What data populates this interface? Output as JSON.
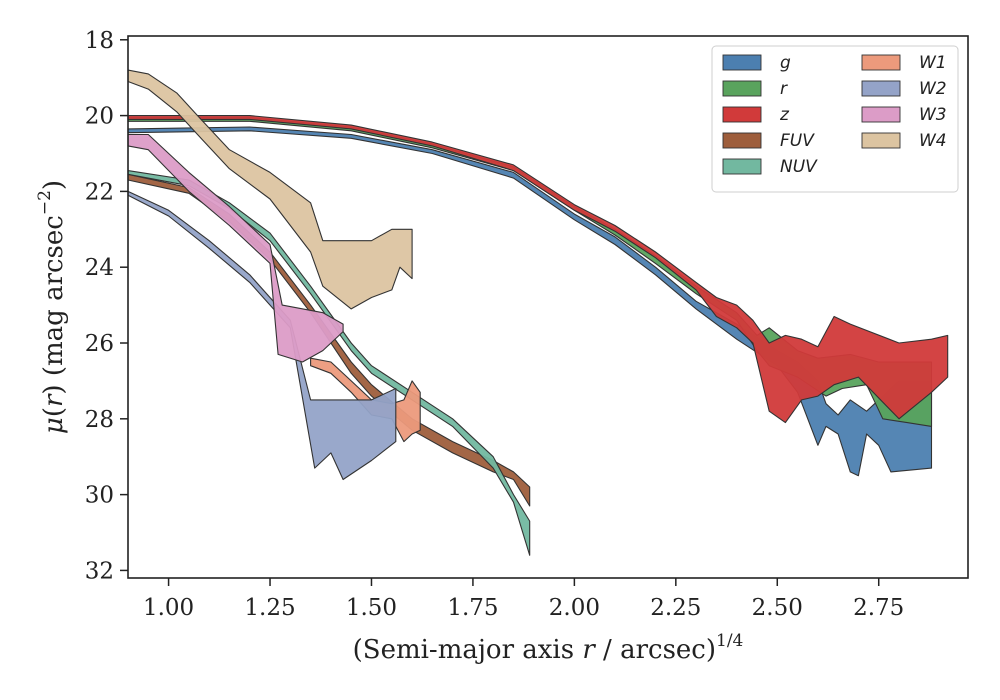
{
  "chart_data": {
    "type": "area",
    "xlabel": "(Semi-major axis r / arcsec)^{1/4}",
    "xlabel_parts": {
      "pre": "(Semi-major axis ",
      "var": "r",
      "post": " / arcsec)",
      "sup": "1/4"
    },
    "ylabel": "μ(r) (mag arcsec^-2)",
    "ylabel_parts": {
      "mu": "μ",
      "open": "(",
      "var": "r",
      "close": ")",
      "unit": " (mag arcsec",
      "sup": "−2",
      "end": ")"
    },
    "xlim": [
      0.9,
      2.97
    ],
    "ylim": [
      32.2,
      17.9
    ],
    "y_inverted": true,
    "xticks": [
      1.0,
      1.25,
      1.5,
      1.75,
      2.0,
      2.25,
      2.5,
      2.75
    ],
    "xtick_labels": [
      "1.00",
      "1.25",
      "1.50",
      "1.75",
      "2.00",
      "2.25",
      "2.50",
      "2.75"
    ],
    "yticks": [
      18,
      20,
      22,
      24,
      26,
      28,
      30,
      32
    ],
    "ytick_labels": [
      "18",
      "20",
      "22",
      "24",
      "26",
      "28",
      "30",
      "32"
    ],
    "legend_position": "top-right",
    "legend_columns": 2,
    "series": [
      {
        "name": "g",
        "color": "#4c7fb0",
        "upper": [
          [
            0.9,
            20.35
          ],
          [
            1.2,
            20.3
          ],
          [
            1.45,
            20.5
          ],
          [
            1.65,
            20.9
          ],
          [
            1.85,
            21.5
          ],
          [
            2.0,
            22.6
          ],
          [
            2.1,
            23.2
          ],
          [
            2.2,
            24.0
          ],
          [
            2.3,
            24.9
          ],
          [
            2.4,
            25.5
          ],
          [
            2.5,
            26.2
          ],
          [
            2.55,
            26.5
          ],
          [
            2.6,
            27.0
          ],
          [
            2.62,
            27.6
          ],
          [
            2.65,
            27.9
          ],
          [
            2.68,
            27.5
          ],
          [
            2.72,
            27.8
          ],
          [
            2.8,
            27.0
          ],
          [
            2.88,
            27.0
          ]
        ],
        "lower": [
          [
            0.9,
            20.45
          ],
          [
            1.2,
            20.4
          ],
          [
            1.45,
            20.6
          ],
          [
            1.65,
            21.0
          ],
          [
            1.85,
            21.65
          ],
          [
            2.0,
            22.75
          ],
          [
            2.1,
            23.4
          ],
          [
            2.2,
            24.2
          ],
          [
            2.3,
            25.1
          ],
          [
            2.4,
            25.9
          ],
          [
            2.5,
            26.6
          ],
          [
            2.55,
            27.3
          ],
          [
            2.6,
            28.7
          ],
          [
            2.62,
            28.2
          ],
          [
            2.65,
            28.4
          ],
          [
            2.68,
            29.4
          ],
          [
            2.7,
            29.5
          ],
          [
            2.72,
            28.4
          ],
          [
            2.75,
            28.7
          ],
          [
            2.78,
            29.4
          ],
          [
            2.88,
            29.3
          ]
        ]
      },
      {
        "name": "r",
        "color": "#59a35d",
        "upper": [
          [
            0.9,
            20.05
          ],
          [
            1.2,
            20.05
          ],
          [
            1.45,
            20.3
          ],
          [
            1.65,
            20.75
          ],
          [
            1.85,
            21.35
          ],
          [
            2.0,
            22.4
          ],
          [
            2.1,
            23.0
          ],
          [
            2.2,
            23.7
          ],
          [
            2.3,
            24.5
          ],
          [
            2.4,
            25.2
          ],
          [
            2.45,
            25.8
          ],
          [
            2.48,
            25.6
          ],
          [
            2.55,
            26.2
          ],
          [
            2.6,
            26.4
          ],
          [
            2.68,
            26.3
          ],
          [
            2.75,
            26.5
          ],
          [
            2.88,
            26.5
          ]
        ],
        "lower": [
          [
            0.9,
            20.15
          ],
          [
            1.2,
            20.15
          ],
          [
            1.45,
            20.4
          ],
          [
            1.65,
            20.85
          ],
          [
            1.85,
            21.45
          ],
          [
            2.0,
            22.5
          ],
          [
            2.1,
            23.15
          ],
          [
            2.2,
            23.9
          ],
          [
            2.3,
            24.7
          ],
          [
            2.4,
            25.4
          ],
          [
            2.45,
            26.2
          ],
          [
            2.48,
            26.6
          ],
          [
            2.55,
            26.9
          ],
          [
            2.62,
            27.4
          ],
          [
            2.66,
            27.2
          ],
          [
            2.72,
            27.1
          ],
          [
            2.76,
            28.0
          ],
          [
            2.82,
            28.1
          ],
          [
            2.88,
            28.2
          ]
        ]
      },
      {
        "name": "z",
        "color": "#d13a3a",
        "upper": [
          [
            0.9,
            20.0
          ],
          [
            1.2,
            20.0
          ],
          [
            1.45,
            20.25
          ],
          [
            1.65,
            20.7
          ],
          [
            1.85,
            21.3
          ],
          [
            2.0,
            22.35
          ],
          [
            2.1,
            22.9
          ],
          [
            2.2,
            23.6
          ],
          [
            2.3,
            24.4
          ],
          [
            2.35,
            24.8
          ],
          [
            2.4,
            25.0
          ],
          [
            2.44,
            25.4
          ],
          [
            2.48,
            26.0
          ],
          [
            2.52,
            25.8
          ],
          [
            2.56,
            25.9
          ],
          [
            2.6,
            26.1
          ],
          [
            2.64,
            25.3
          ],
          [
            2.68,
            25.5
          ],
          [
            2.8,
            26.0
          ],
          [
            2.88,
            25.9
          ],
          [
            2.92,
            25.8
          ]
        ],
        "lower": [
          [
            0.9,
            20.1
          ],
          [
            1.2,
            20.1
          ],
          [
            1.45,
            20.35
          ],
          [
            1.65,
            20.8
          ],
          [
            1.85,
            21.45
          ],
          [
            2.0,
            22.5
          ],
          [
            2.1,
            23.05
          ],
          [
            2.2,
            23.75
          ],
          [
            2.3,
            24.6
          ],
          [
            2.35,
            25.3
          ],
          [
            2.4,
            25.6
          ],
          [
            2.44,
            26.0
          ],
          [
            2.48,
            27.8
          ],
          [
            2.52,
            28.1
          ],
          [
            2.56,
            27.5
          ],
          [
            2.6,
            27.4
          ],
          [
            2.64,
            27.1
          ],
          [
            2.7,
            26.9
          ],
          [
            2.8,
            28.0
          ],
          [
            2.88,
            27.3
          ],
          [
            2.92,
            26.9
          ]
        ]
      },
      {
        "name": "FUV",
        "color": "#9e5e3c",
        "upper": [
          [
            0.9,
            21.55
          ],
          [
            1.05,
            21.9
          ],
          [
            1.15,
            22.6
          ],
          [
            1.25,
            23.6
          ],
          [
            1.35,
            25.0
          ],
          [
            1.45,
            26.5
          ],
          [
            1.5,
            27.1
          ],
          [
            1.6,
            28.0
          ],
          [
            1.7,
            28.6
          ],
          [
            1.8,
            29.1
          ],
          [
            1.85,
            29.4
          ],
          [
            1.89,
            29.8
          ]
        ],
        "lower": [
          [
            0.9,
            21.7
          ],
          [
            1.05,
            22.05
          ],
          [
            1.15,
            22.8
          ],
          [
            1.25,
            23.8
          ],
          [
            1.35,
            25.2
          ],
          [
            1.45,
            26.8
          ],
          [
            1.5,
            27.4
          ],
          [
            1.6,
            28.3
          ],
          [
            1.7,
            28.9
          ],
          [
            1.8,
            29.4
          ],
          [
            1.85,
            29.6
          ],
          [
            1.89,
            30.3
          ]
        ]
      },
      {
        "name": "NUV",
        "color": "#72b8a0",
        "upper": [
          [
            0.9,
            21.45
          ],
          [
            1.05,
            21.7
          ],
          [
            1.15,
            22.3
          ],
          [
            1.25,
            23.1
          ],
          [
            1.35,
            24.5
          ],
          [
            1.45,
            26.0
          ],
          [
            1.5,
            26.6
          ],
          [
            1.6,
            27.3
          ],
          [
            1.7,
            28.0
          ],
          [
            1.8,
            29.0
          ],
          [
            1.85,
            30.0
          ],
          [
            1.89,
            30.7
          ]
        ],
        "lower": [
          [
            0.9,
            21.55
          ],
          [
            1.05,
            21.85
          ],
          [
            1.15,
            22.45
          ],
          [
            1.25,
            23.3
          ],
          [
            1.35,
            24.7
          ],
          [
            1.45,
            26.2
          ],
          [
            1.5,
            26.8
          ],
          [
            1.6,
            27.5
          ],
          [
            1.7,
            28.2
          ],
          [
            1.8,
            29.3
          ],
          [
            1.85,
            30.2
          ],
          [
            1.89,
            31.6
          ]
        ]
      },
      {
        "name": "W1",
        "color": "#ec9a7c",
        "upper": [
          [
            1.35,
            26.4
          ],
          [
            1.4,
            26.5
          ],
          [
            1.45,
            27.0
          ],
          [
            1.5,
            27.5
          ],
          [
            1.55,
            27.6
          ],
          [
            1.58,
            27.5
          ],
          [
            1.6,
            27.0
          ],
          [
            1.62,
            27.3
          ]
        ],
        "lower": [
          [
            1.35,
            26.6
          ],
          [
            1.4,
            26.8
          ],
          [
            1.45,
            27.3
          ],
          [
            1.5,
            27.9
          ],
          [
            1.55,
            28.0
          ],
          [
            1.58,
            28.6
          ],
          [
            1.6,
            28.4
          ],
          [
            1.62,
            28.3
          ]
        ]
      },
      {
        "name": "W2",
        "color": "#94a3c8",
        "upper": [
          [
            0.9,
            22.0
          ],
          [
            1.0,
            22.5
          ],
          [
            1.1,
            23.3
          ],
          [
            1.2,
            24.2
          ],
          [
            1.3,
            25.4
          ],
          [
            1.35,
            27.5
          ],
          [
            1.4,
            27.5
          ],
          [
            1.45,
            27.5
          ],
          [
            1.5,
            27.5
          ],
          [
            1.56,
            27.2
          ]
        ],
        "lower": [
          [
            0.9,
            22.1
          ],
          [
            1.0,
            22.65
          ],
          [
            1.1,
            23.5
          ],
          [
            1.2,
            24.4
          ],
          [
            1.3,
            25.6
          ],
          [
            1.36,
            29.3
          ],
          [
            1.4,
            28.9
          ],
          [
            1.43,
            29.6
          ],
          [
            1.5,
            29.1
          ],
          [
            1.56,
            28.6
          ]
        ]
      },
      {
        "name": "W3",
        "color": "#dc9cc7",
        "upper": [
          [
            0.9,
            20.5
          ],
          [
            0.95,
            20.5
          ],
          [
            1.05,
            21.5
          ],
          [
            1.15,
            22.4
          ],
          [
            1.25,
            23.4
          ],
          [
            1.28,
            25.0
          ],
          [
            1.38,
            25.2
          ],
          [
            1.43,
            25.5
          ]
        ],
        "lower": [
          [
            0.9,
            20.8
          ],
          [
            0.95,
            20.9
          ],
          [
            1.05,
            22.0
          ],
          [
            1.15,
            22.9
          ],
          [
            1.25,
            23.9
          ],
          [
            1.27,
            26.3
          ],
          [
            1.33,
            26.5
          ],
          [
            1.38,
            26.2
          ],
          [
            1.43,
            25.7
          ]
        ]
      },
      {
        "name": "W4",
        "color": "#dcc4a1",
        "upper": [
          [
            0.9,
            18.8
          ],
          [
            0.95,
            18.9
          ],
          [
            1.02,
            19.4
          ],
          [
            1.08,
            20.1
          ],
          [
            1.15,
            20.9
          ],
          [
            1.25,
            21.5
          ],
          [
            1.35,
            22.3
          ],
          [
            1.38,
            23.3
          ],
          [
            1.5,
            23.3
          ],
          [
            1.55,
            23.0
          ],
          [
            1.6,
            23.0
          ]
        ],
        "lower": [
          [
            0.9,
            19.1
          ],
          [
            0.95,
            19.3
          ],
          [
            1.02,
            19.9
          ],
          [
            1.08,
            20.6
          ],
          [
            1.15,
            21.4
          ],
          [
            1.25,
            22.2
          ],
          [
            1.35,
            23.6
          ],
          [
            1.38,
            24.5
          ],
          [
            1.45,
            25.1
          ],
          [
            1.5,
            24.8
          ],
          [
            1.55,
            24.6
          ],
          [
            1.57,
            24.0
          ],
          [
            1.6,
            24.3
          ]
        ]
      }
    ]
  }
}
